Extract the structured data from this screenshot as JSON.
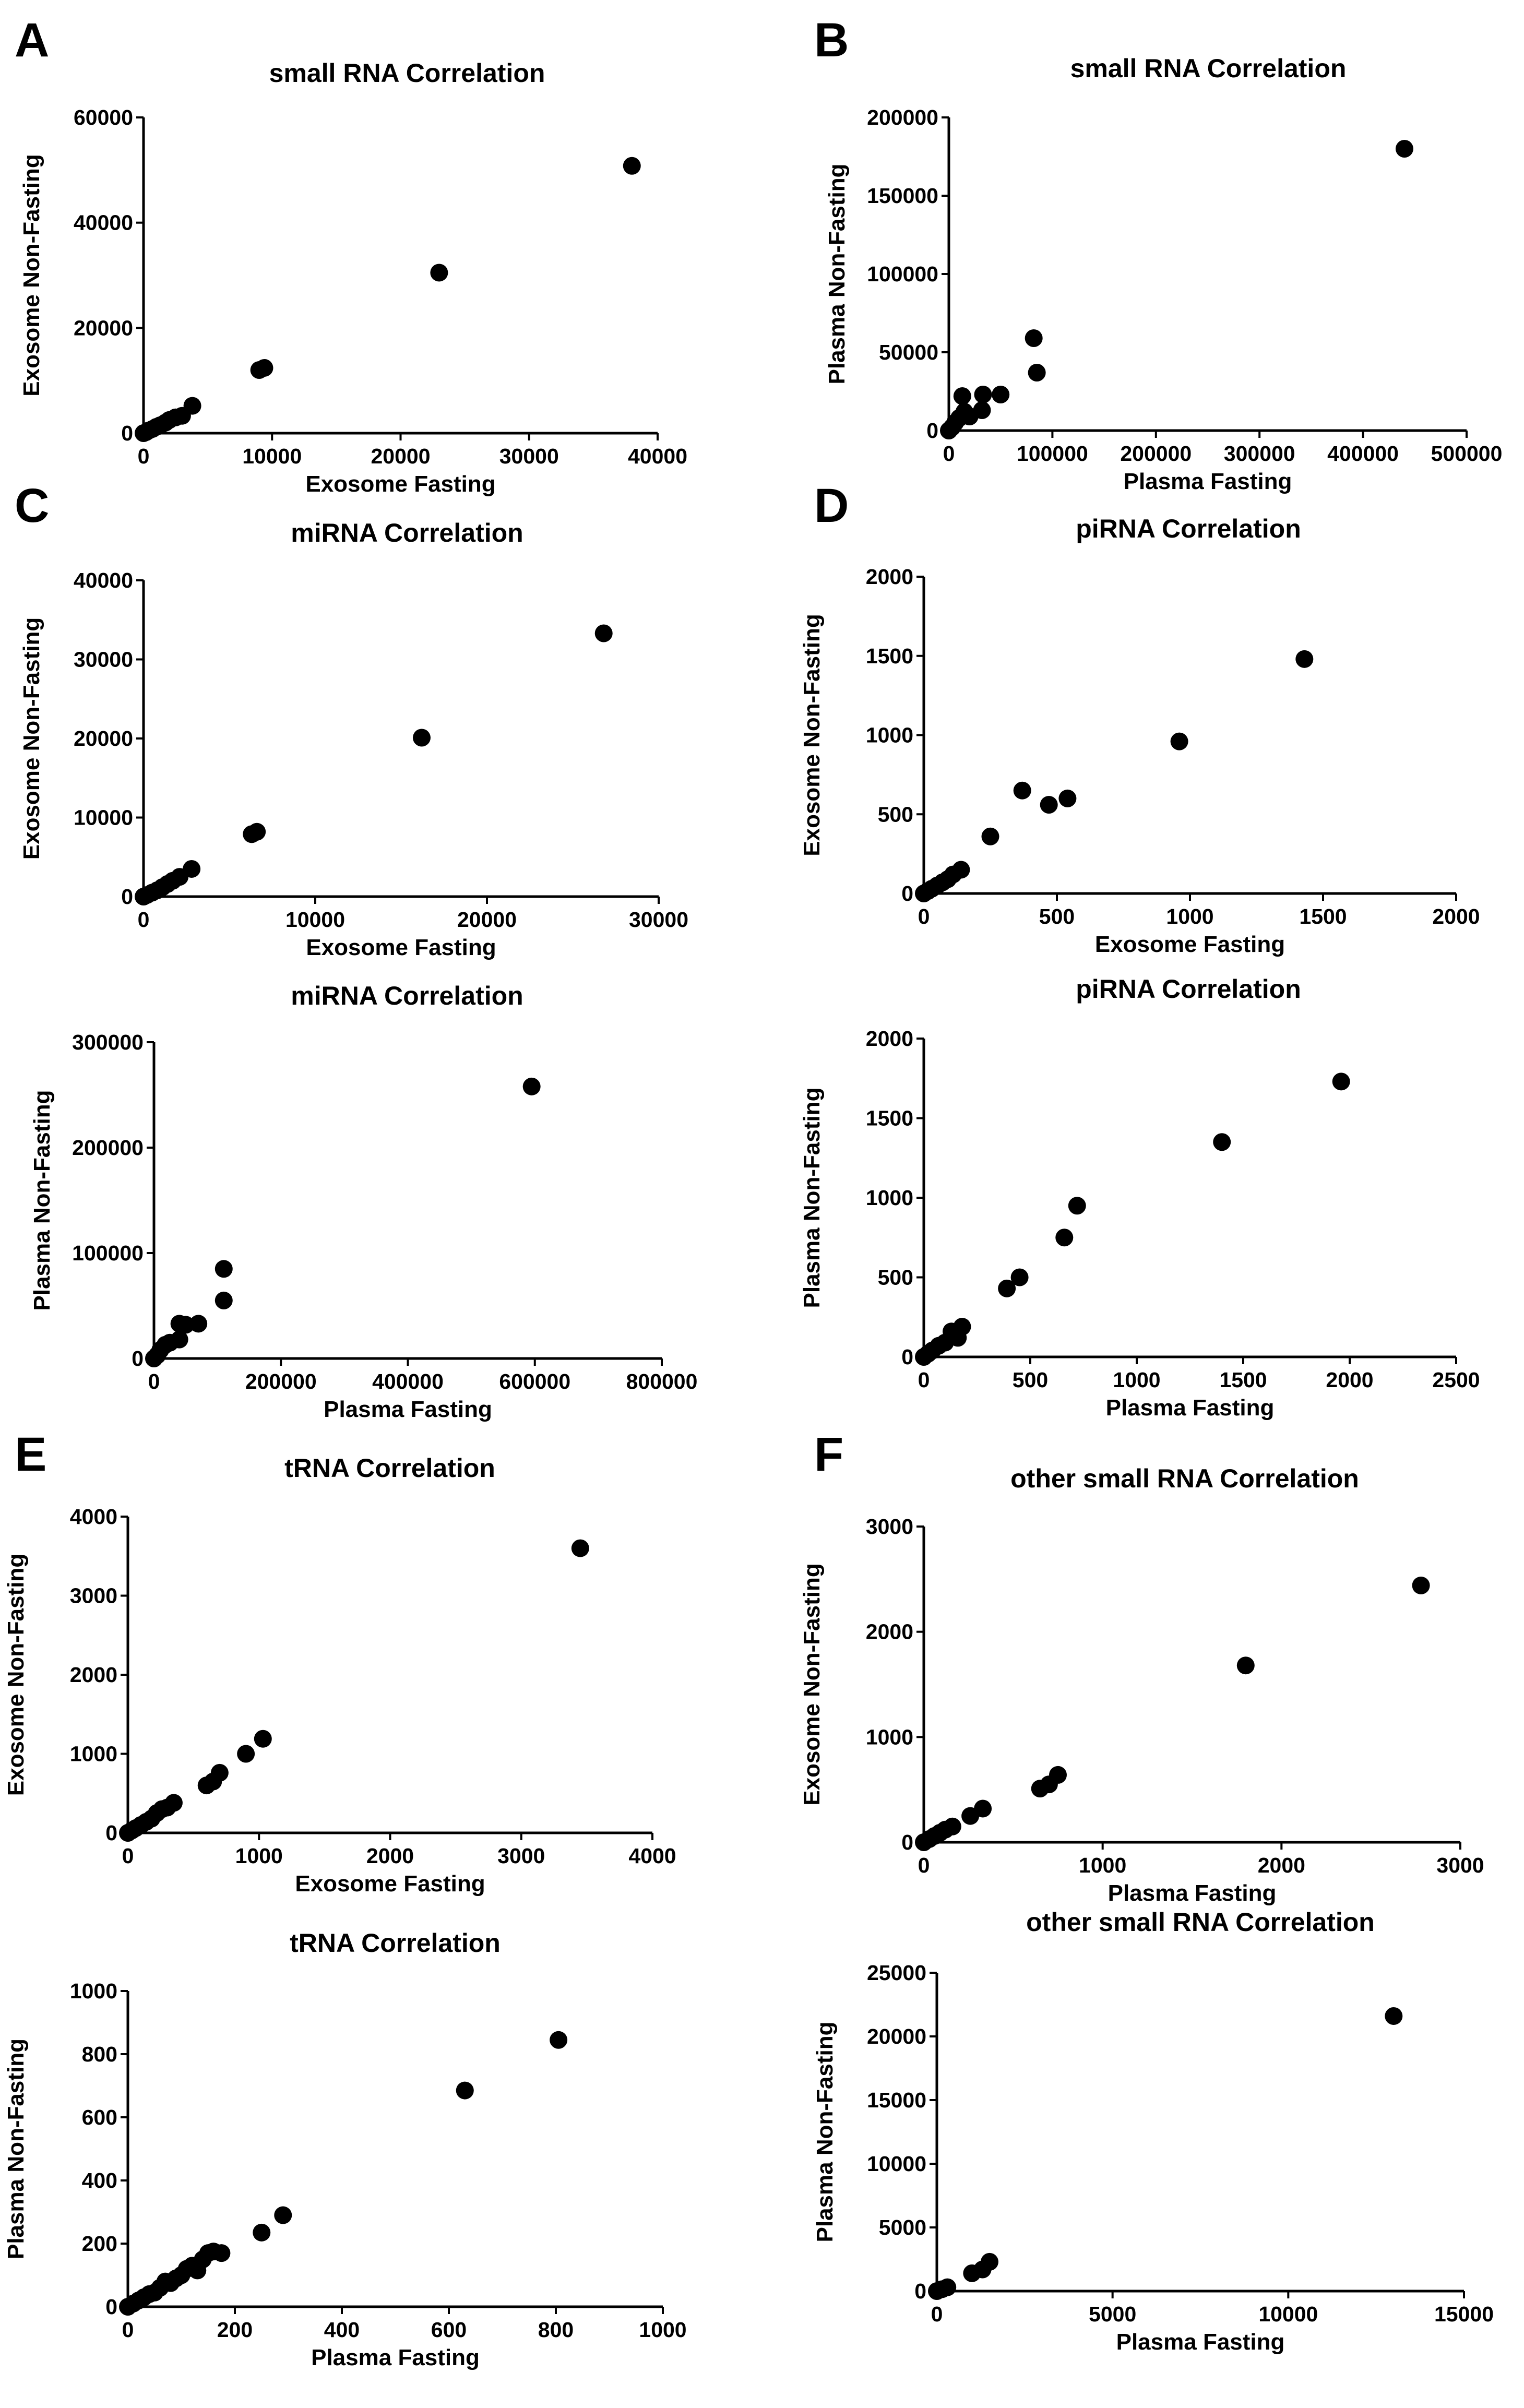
{
  "panel_labels": {
    "A": "A",
    "B": "B",
    "C": "C",
    "D": "D",
    "E": "E",
    "F": "F"
  },
  "chart_data": [
    {
      "id": "A",
      "type": "scatter",
      "title": "small RNA  Correlation",
      "xlabel": "Exosome Fasting",
      "ylabel": "Exosome Non-Fasting",
      "xlim": [
        0,
        40000
      ],
      "ylim": [
        0,
        60000
      ],
      "xticks": [
        0,
        10000,
        20000,
        30000,
        40000
      ],
      "yticks": [
        0,
        20000,
        40000,
        60000
      ],
      "points": [
        [
          0,
          0
        ],
        [
          200,
          200
        ],
        [
          400,
          500
        ],
        [
          700,
          800
        ],
        [
          1000,
          1200
        ],
        [
          1300,
          1500
        ],
        [
          1700,
          2000
        ],
        [
          2000,
          2500
        ],
        [
          2500,
          3000
        ],
        [
          3000,
          3300
        ],
        [
          3800,
          5200
        ],
        [
          9000,
          12000
        ],
        [
          9400,
          12400
        ],
        [
          23000,
          30500
        ],
        [
          38000,
          50800
        ]
      ]
    },
    {
      "id": "B",
      "type": "scatter",
      "title": "small RNA Correlation",
      "xlabel": "Plasma Fasting",
      "ylabel": "Plasma Non-Fasting",
      "xlim": [
        0,
        500000
      ],
      "ylim": [
        0,
        200000
      ],
      "xticks": [
        0,
        100000,
        200000,
        300000,
        400000,
        500000
      ],
      "yticks": [
        0,
        50000,
        100000,
        150000,
        200000
      ],
      "points": [
        [
          0,
          0
        ],
        [
          3000,
          2000
        ],
        [
          6000,
          5000
        ],
        [
          10000,
          8000
        ],
        [
          15000,
          12000
        ],
        [
          20000,
          9000
        ],
        [
          13000,
          22000
        ],
        [
          32000,
          13000
        ],
        [
          33000,
          23000
        ],
        [
          50000,
          23000
        ],
        [
          82000,
          59000
        ],
        [
          85000,
          37000
        ],
        [
          440000,
          180000
        ]
      ]
    },
    {
      "id": "C1",
      "type": "scatter",
      "title": "miRNA  Correlation",
      "xlabel": "Exosome Fasting",
      "ylabel": "Exosome Non-Fasting",
      "xlim": [
        0,
        30000
      ],
      "ylim": [
        0,
        40000
      ],
      "xticks": [
        0,
        10000,
        20000,
        30000
      ],
      "yticks": [
        0,
        10000,
        20000,
        30000,
        40000
      ],
      "points": [
        [
          0,
          0
        ],
        [
          200,
          200
        ],
        [
          500,
          500
        ],
        [
          800,
          800
        ],
        [
          1100,
          1200
        ],
        [
          1400,
          1600
        ],
        [
          1700,
          2000
        ],
        [
          2100,
          2500
        ],
        [
          2800,
          3500
        ],
        [
          6300,
          7900
        ],
        [
          6600,
          8200
        ],
        [
          16200,
          20100
        ],
        [
          26800,
          33300
        ]
      ]
    },
    {
      "id": "C2",
      "type": "scatter",
      "title": "miRNA Correlation",
      "xlabel": "Plasma Fasting",
      "ylabel": "Plasma Non-Fasting",
      "xlim": [
        0,
        800000
      ],
      "ylim": [
        0,
        300000
      ],
      "xticks": [
        0,
        200000,
        400000,
        600000,
        800000
      ],
      "yticks": [
        0,
        100000,
        200000,
        300000
      ],
      "points": [
        [
          0,
          0
        ],
        [
          5000,
          3000
        ],
        [
          10000,
          8000
        ],
        [
          18000,
          13000
        ],
        [
          25000,
          15000
        ],
        [
          40000,
          18000
        ],
        [
          40000,
          33000
        ],
        [
          50000,
          32000
        ],
        [
          70000,
          33000
        ],
        [
          110000,
          85000
        ],
        [
          110000,
          55000
        ],
        [
          595000,
          258000
        ]
      ]
    },
    {
      "id": "D1",
      "type": "scatter",
      "title": "piRNA Correlation",
      "xlabel": "Exosome Fasting",
      "ylabel": "Exosome Non-Fasting",
      "xlim": [
        0,
        2000
      ],
      "ylim": [
        0,
        2000
      ],
      "xticks": [
        0,
        500,
        1000,
        1500,
        2000
      ],
      "yticks": [
        0,
        500,
        1000,
        1500,
        2000
      ],
      "points": [
        [
          0,
          0
        ],
        [
          15,
          15
        ],
        [
          30,
          30
        ],
        [
          50,
          50
        ],
        [
          70,
          70
        ],
        [
          90,
          90
        ],
        [
          110,
          120
        ],
        [
          140,
          150
        ],
        [
          250,
          360
        ],
        [
          370,
          650
        ],
        [
          470,
          560
        ],
        [
          540,
          600
        ],
        [
          960,
          960
        ],
        [
          1430,
          1480
        ]
      ]
    },
    {
      "id": "D2",
      "type": "scatter",
      "title": "piRNA Correlation",
      "xlabel": "Plasma Fasting",
      "ylabel": "Plasma Non-Fasting",
      "xlim": [
        0,
        2500
      ],
      "ylim": [
        0,
        2000
      ],
      "xticks": [
        0,
        500,
        1000,
        1500,
        2000,
        2500
      ],
      "yticks": [
        0,
        500,
        1000,
        1500,
        2000
      ],
      "points": [
        [
          0,
          0
        ],
        [
          20,
          20
        ],
        [
          40,
          40
        ],
        [
          70,
          70
        ],
        [
          100,
          90
        ],
        [
          130,
          160
        ],
        [
          160,
          120
        ],
        [
          180,
          190
        ],
        [
          390,
          430
        ],
        [
          450,
          500
        ],
        [
          660,
          750
        ],
        [
          720,
          950
        ],
        [
          1400,
          1350
        ],
        [
          1960,
          1730
        ]
      ]
    },
    {
      "id": "E1",
      "type": "scatter",
      "title": "tRNA Correlation",
      "xlabel": "Exosome Fasting",
      "ylabel": "Exosome Non-Fasting",
      "xlim": [
        0,
        4000
      ],
      "ylim": [
        0,
        4000
      ],
      "xticks": [
        0,
        1000,
        2000,
        3000,
        4000
      ],
      "yticks": [
        0,
        1000,
        2000,
        3000,
        4000
      ],
      "points": [
        [
          0,
          0
        ],
        [
          30,
          30
        ],
        [
          60,
          60
        ],
        [
          100,
          100
        ],
        [
          140,
          140
        ],
        [
          180,
          180
        ],
        [
          220,
          250
        ],
        [
          260,
          300
        ],
        [
          300,
          320
        ],
        [
          350,
          380
        ],
        [
          600,
          600
        ],
        [
          650,
          650
        ],
        [
          700,
          760
        ],
        [
          900,
          1000
        ],
        [
          1030,
          1190
        ],
        [
          3450,
          3600
        ]
      ]
    },
    {
      "id": "E2",
      "type": "scatter",
      "title": "tRNA Correlation",
      "xlabel": "Plasma Fasting",
      "ylabel": "Plasma Non-Fasting",
      "xlim": [
        0,
        1000
      ],
      "ylim": [
        0,
        1000
      ],
      "xticks": [
        0,
        200,
        400,
        600,
        800,
        1000
      ],
      "yticks": [
        0,
        200,
        400,
        600,
        800,
        1000
      ],
      "points": [
        [
          0,
          0
        ],
        [
          10,
          10
        ],
        [
          20,
          20
        ],
        [
          30,
          30
        ],
        [
          40,
          40
        ],
        [
          50,
          45
        ],
        [
          60,
          60
        ],
        [
          70,
          80
        ],
        [
          80,
          75
        ],
        [
          90,
          90
        ],
        [
          100,
          100
        ],
        [
          110,
          120
        ],
        [
          120,
          130
        ],
        [
          130,
          115
        ],
        [
          140,
          150
        ],
        [
          150,
          170
        ],
        [
          160,
          175
        ],
        [
          175,
          170
        ],
        [
          250,
          235
        ],
        [
          290,
          290
        ],
        [
          630,
          685
        ],
        [
          805,
          845
        ]
      ]
    },
    {
      "id": "F1",
      "type": "scatter",
      "title": "other small RNA Correlation",
      "xlabel": "Plasma Fasting",
      "ylabel": "Exosome Non-Fasting",
      "xlim": [
        0,
        3000
      ],
      "ylim": [
        0,
        3000
      ],
      "xticks": [
        0,
        1000,
        2000,
        3000
      ],
      "yticks": [
        0,
        1000,
        2000,
        3000
      ],
      "points": [
        [
          0,
          0
        ],
        [
          30,
          30
        ],
        [
          60,
          60
        ],
        [
          90,
          90
        ],
        [
          120,
          120
        ],
        [
          160,
          150
        ],
        [
          260,
          250
        ],
        [
          330,
          320
        ],
        [
          650,
          510
        ],
        [
          700,
          550
        ],
        [
          750,
          640
        ],
        [
          1800,
          1680
        ],
        [
          2780,
          2440
        ]
      ]
    },
    {
      "id": "F2",
      "type": "scatter",
      "title": "other small RNA Correlation",
      "xlabel": "Plasma Fasting",
      "ylabel": "Plasma Non-Fasting",
      "xlim": [
        0,
        15000
      ],
      "ylim": [
        0,
        25000
      ],
      "xticks": [
        0,
        5000,
        10000,
        15000
      ],
      "yticks": [
        0,
        5000,
        10000,
        15000,
        20000,
        25000
      ],
      "points": [
        [
          0,
          0
        ],
        [
          150,
          150
        ],
        [
          300,
          300
        ],
        [
          1000,
          1400
        ],
        [
          1300,
          1700
        ],
        [
          1500,
          2300
        ],
        [
          13000,
          21600
        ]
      ]
    }
  ]
}
